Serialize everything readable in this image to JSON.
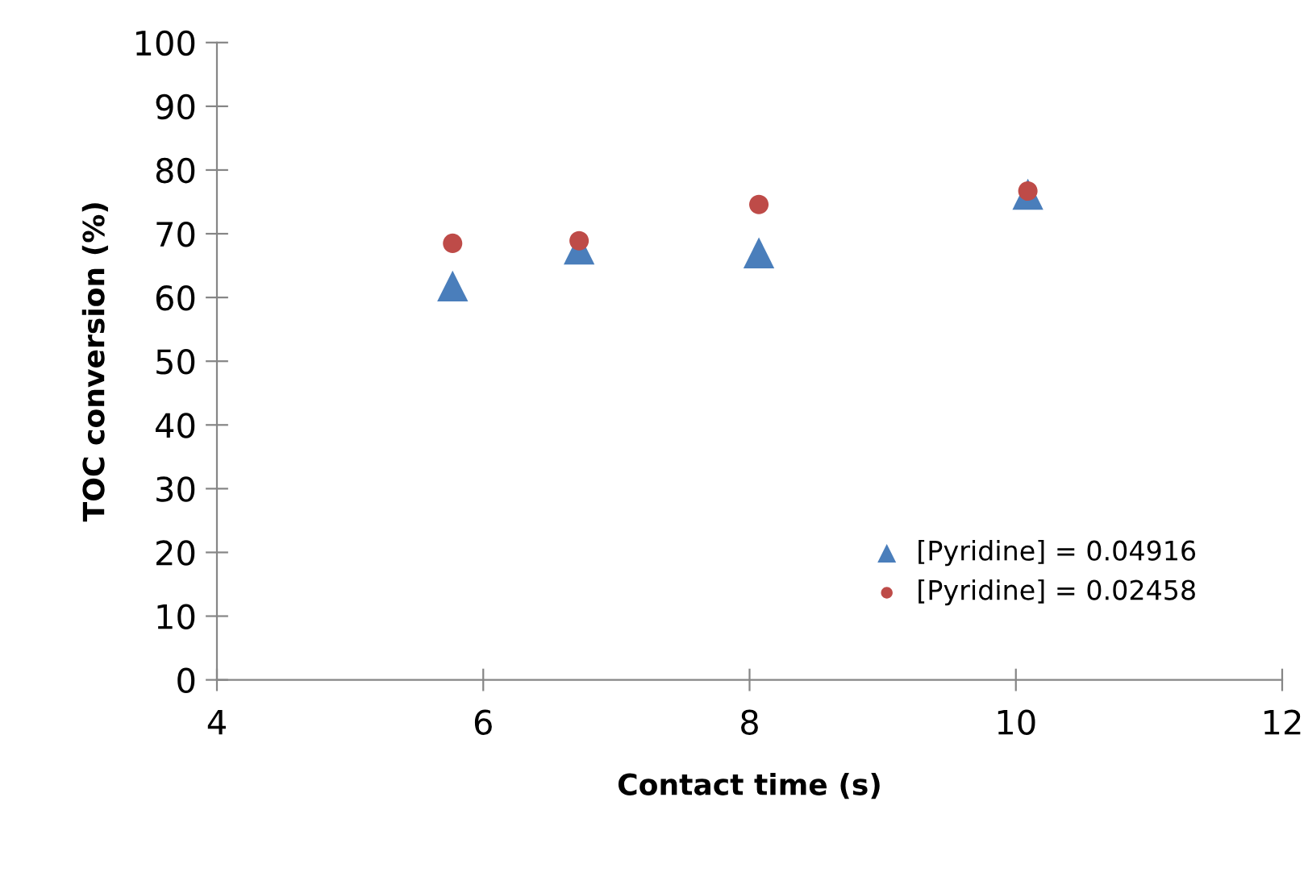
{
  "chart_data": {
    "type": "scatter",
    "xlabel": "Contact time (s)",
    "ylabel": "TOC conversion (%)",
    "xlim": [
      4,
      12
    ],
    "xticks": [
      4,
      6,
      8,
      10,
      12
    ],
    "ylim": [
      0,
      100
    ],
    "yticks": [
      0,
      10,
      20,
      30,
      40,
      50,
      60,
      70,
      80,
      90,
      100
    ],
    "grid": false,
    "legend": "lower right",
    "series": [
      {
        "name": "[Pyridine] = 0.04916",
        "color": "#4a7ebb",
        "marker": "triangle",
        "x": [
          5.77,
          6.72,
          8.07,
          10.09
        ],
        "values": [
          61.8,
          67.6,
          67.0,
          76.2
        ]
      },
      {
        "name": "[Pyridine] = 0.02458",
        "color": "#be4b48",
        "marker": "circle",
        "x": [
          5.77,
          6.72,
          8.07,
          10.09
        ],
        "values": [
          68.5,
          68.9,
          74.6,
          76.7
        ]
      }
    ]
  }
}
